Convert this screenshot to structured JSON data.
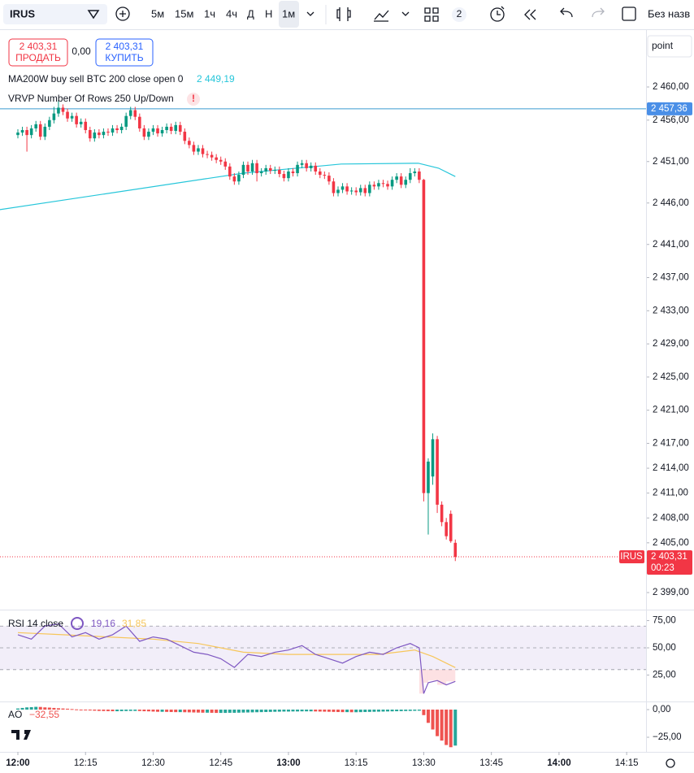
{
  "toolbar": {
    "symbol": "IRUS",
    "intervals": [
      "5м",
      "15м",
      "1ч",
      "4ч",
      "Д",
      "Н",
      "1м"
    ],
    "badge": "2",
    "layout": "Без назв"
  },
  "order": {
    "sell_price": "2 403,31",
    "sell": "ПРОДАТЬ",
    "spread": "0,00",
    "buy_price": "2 403,31",
    "buy": "КУПИТЬ"
  },
  "scale_mode": "point",
  "chart_data": {
    "type": "candlestick",
    "up_color": "#089981",
    "down_color": "#f23645",
    "x": [
      0,
      1,
      2,
      3,
      4,
      5,
      6,
      7,
      8,
      9,
      10,
      11,
      12,
      13,
      14,
      15,
      16,
      17,
      18,
      19,
      20,
      21,
      22,
      23,
      24,
      25,
      26,
      27,
      28,
      29,
      30,
      31,
      32,
      33,
      34,
      35,
      36,
      37,
      38,
      39,
      40,
      41,
      42,
      43,
      44,
      45,
      46,
      47,
      48,
      49,
      50,
      51,
      52,
      53,
      54,
      55,
      56,
      57,
      58,
      59,
      60,
      61,
      62,
      63,
      64,
      65,
      66,
      67,
      68,
      69,
      70,
      71,
      72,
      73,
      74,
      75,
      76,
      77,
      78,
      79,
      80,
      81,
      82,
      83,
      84,
      85,
      86,
      87,
      88,
      89,
      90,
      91,
      92,
      93,
      94,
      95,
      96,
      97
    ],
    "candles": [
      [
        2454.2,
        2454.9,
        2453.8,
        2454.5
      ],
      [
        2454.5,
        2455.2,
        2454.1,
        2454.8
      ],
      [
        2454.8,
        2455.2,
        2452.2,
        2454.2
      ],
      [
        2454.2,
        2455.4,
        2453.8,
        2455
      ],
      [
        2455,
        2455.9,
        2454.6,
        2455.5
      ],
      [
        2455.5,
        2455.9,
        2453.6,
        2454
      ],
      [
        2454,
        2455.6,
        2453.6,
        2455.2
      ],
      [
        2455.2,
        2456.4,
        2454.8,
        2456
      ],
      [
        2456,
        2457.6,
        2455.6,
        2456.8
      ],
      [
        2456.8,
        2458.4,
        2456.4,
        2457.5
      ],
      [
        2457.5,
        2457.9,
        2456.6,
        2457
      ],
      [
        2457,
        2457.4,
        2455.8,
        2456.2
      ],
      [
        2456.2,
        2456.9,
        2455.8,
        2456.5
      ],
      [
        2456.5,
        2456.9,
        2455.1,
        2455.5
      ],
      [
        2455.5,
        2456.2,
        2455.1,
        2455.8
      ],
      [
        2455.8,
        2456.2,
        2454.4,
        2454.8
      ],
      [
        2454.8,
        2455.2,
        2453.4,
        2453.8
      ],
      [
        2453.8,
        2454.9,
        2453.4,
        2454.5
      ],
      [
        2454.5,
        2454.9,
        2453.8,
        2454.2
      ],
      [
        2454.2,
        2455,
        2453.8,
        2454.6
      ],
      [
        2454.6,
        2455,
        2454.1,
        2454.5
      ],
      [
        2454.5,
        2455.4,
        2454.1,
        2455
      ],
      [
        2455,
        2455.4,
        2454.4,
        2454.8
      ],
      [
        2454.8,
        2455.6,
        2454.4,
        2455.2
      ],
      [
        2455.2,
        2456.9,
        2454.8,
        2456.5
      ],
      [
        2456.5,
        2457.6,
        2456.1,
        2457.2
      ],
      [
        2457.2,
        2457.6,
        2456,
        2456.4
      ],
      [
        2456.4,
        2456.8,
        2454.6,
        2455
      ],
      [
        2455,
        2455.4,
        2453.6,
        2454
      ],
      [
        2454,
        2455,
        2453.6,
        2454.6
      ],
      [
        2454.6,
        2455.4,
        2454.2,
        2455
      ],
      [
        2455,
        2455.4,
        2454,
        2454.4
      ],
      [
        2454.4,
        2455.2,
        2454,
        2454.8
      ],
      [
        2454.8,
        2455.6,
        2454.4,
        2455.2
      ],
      [
        2455.2,
        2455.6,
        2454.3,
        2454.7
      ],
      [
        2454.7,
        2455.8,
        2454.3,
        2455.4
      ],
      [
        2455.4,
        2455.8,
        2454.2,
        2454.6
      ],
      [
        2454.6,
        2455,
        2453.1,
        2453.5
      ],
      [
        2453.5,
        2453.9,
        2452.6,
        2453
      ],
      [
        2453,
        2453.4,
        2451.8,
        2452.2
      ],
      [
        2452.2,
        2453,
        2451.8,
        2452.6
      ],
      [
        2452.6,
        2453,
        2451.5,
        2451.9
      ],
      [
        2451.9,
        2452.3,
        2451.4,
        2451.8
      ],
      [
        2451.8,
        2452.2,
        2451.1,
        2451.5
      ],
      [
        2451.5,
        2451.9,
        2450.8,
        2451.2
      ],
      [
        2451.2,
        2451.6,
        2450.6,
        2451
      ],
      [
        2451,
        2451.4,
        2450,
        2450.4
      ],
      [
        2450.4,
        2450.8,
        2448.8,
        2449.2
      ],
      [
        2449.2,
        2449.6,
        2448.2,
        2448.6
      ],
      [
        2448.6,
        2449.8,
        2448.2,
        2449.4
      ],
      [
        2449.4,
        2451,
        2449,
        2450.6
      ],
      [
        2450.6,
        2451,
        2449.4,
        2449.8
      ],
      [
        2449.8,
        2451.2,
        2449.4,
        2450.8
      ],
      [
        2450.8,
        2451.2,
        2448.6,
        2449.6
      ],
      [
        2449.6,
        2450.2,
        2449.2,
        2449.8
      ],
      [
        2449.8,
        2450.6,
        2449.4,
        2450.2
      ],
      [
        2450.2,
        2450.6,
        2449.5,
        2449.9
      ],
      [
        2449.9,
        2450.4,
        2449.5,
        2450
      ],
      [
        2450,
        2450.4,
        2449.1,
        2449.5
      ],
      [
        2449.5,
        2449.9,
        2448.6,
        2449
      ],
      [
        2449,
        2450.2,
        2448.6,
        2449.8
      ],
      [
        2449.8,
        2450.2,
        2449.2,
        2449.6
      ],
      [
        2449.6,
        2451,
        2449.2,
        2450.6
      ],
      [
        2450.6,
        2451.2,
        2450.2,
        2450.8
      ],
      [
        2450.8,
        2451.2,
        2449.8,
        2450.2
      ],
      [
        2450.2,
        2450.9,
        2449.8,
        2450.5
      ],
      [
        2450.5,
        2450.9,
        2449.4,
        2449.8
      ],
      [
        2449.8,
        2450.2,
        2449,
        2449.4
      ],
      [
        2449.4,
        2449.8,
        2448.9,
        2449.3
      ],
      [
        2449.3,
        2449.7,
        2448.2,
        2448.6
      ],
      [
        2448.6,
        2449,
        2446.8,
        2447.2
      ],
      [
        2447.2,
        2448,
        2446.8,
        2447.6
      ],
      [
        2447.6,
        2448.4,
        2447.2,
        2448
      ],
      [
        2448,
        2448.4,
        2447,
        2447.4
      ],
      [
        2447.4,
        2447.9,
        2447,
        2447.5
      ],
      [
        2447.5,
        2447.9,
        2446.9,
        2447.3
      ],
      [
        2447.3,
        2448.2,
        2446.9,
        2447.8
      ],
      [
        2447.8,
        2448.2,
        2446.8,
        2447.2
      ],
      [
        2447.2,
        2448.6,
        2446.8,
        2448.2
      ],
      [
        2448.2,
        2448.6,
        2447.6,
        2448
      ],
      [
        2448,
        2448.8,
        2447.6,
        2448.4
      ],
      [
        2448.4,
        2448.8,
        2447.9,
        2448.3
      ],
      [
        2448.3,
        2448.7,
        2447.6,
        2448
      ],
      [
        2448,
        2449.2,
        2447.6,
        2448.8
      ],
      [
        2448.8,
        2449.6,
        2448.4,
        2449.2
      ],
      [
        2449.2,
        2449.6,
        2447.8,
        2448.2
      ],
      [
        2448.2,
        2449.2,
        2447.8,
        2448.8
      ],
      [
        2448.8,
        2450.2,
        2448.4,
        2449.6
      ],
      [
        2449.6,
        2450.2,
        2449.2,
        2449.8
      ],
      [
        2449.8,
        2450.2,
        2448.4,
        2448.8
      ],
      [
        2448.8,
        2448.9,
        2410,
        2411
      ],
      [
        2411,
        2415.2,
        2406,
        2414.8
      ],
      [
        2413,
        2418.2,
        2412,
        2417.5
      ],
      [
        2417.5,
        2417.9,
        2408.6,
        2409.6
      ],
      [
        2409.6,
        2410,
        2407,
        2407.5
      ],
      [
        2407.5,
        2408,
        2405.4,
        2405.8
      ],
      [
        2408.5,
        2408.9,
        2405,
        2405.2
      ],
      [
        2405,
        2405.4,
        2402.8,
        2403.31
      ]
    ],
    "xlim": [
      -3.964,
      139.3
    ],
    "xticks": [
      {
        "value": 0,
        "label": "12:00"
      },
      {
        "value": 15,
        "label": "12:15"
      },
      {
        "value": 30,
        "label": "12:30"
      },
      {
        "value": 45,
        "label": "12:45"
      },
      {
        "value": 60,
        "label": "13:00"
      },
      {
        "value": 75,
        "label": "13:15"
      },
      {
        "value": 90,
        "label": "13:30"
      },
      {
        "value": 105,
        "label": "13:45"
      },
      {
        "value": 120,
        "label": "14:00"
      },
      {
        "value": 135,
        "label": "14:15"
      }
    ],
    "ylim": [
      2396.94,
      2466.57
    ],
    "yticks": [
      {
        "value": 2460,
        "label": "2 460,00"
      },
      {
        "value": 2456,
        "label": "2 456,00"
      },
      {
        "value": 2451,
        "label": "2 451,00"
      },
      {
        "value": 2446,
        "label": "2 446,00"
      },
      {
        "value": 2441,
        "label": "2 441,00"
      },
      {
        "value": 2437,
        "label": "2 437,00"
      },
      {
        "value": 2433,
        "label": "2 433,00"
      },
      {
        "value": 2429,
        "label": "2 429,00"
      },
      {
        "value": 2425,
        "label": "2 425,00"
      },
      {
        "value": 2421,
        "label": "2 421,00"
      },
      {
        "value": 2417,
        "label": "2 417,00"
      },
      {
        "value": 2414,
        "label": "2 414,00"
      },
      {
        "value": 2411,
        "label": "2 411,00"
      },
      {
        "value": 2408,
        "label": "2 408,00"
      },
      {
        "value": 2405,
        "label": "2 405,00"
      },
      {
        "value": 2399,
        "label": "2 399,00"
      }
    ],
    "ma": {
      "name": "MA200W buy sell BTC 200 close open 0",
      "color": "#26c6da",
      "x": [
        -4,
        50,
        71.7,
        88.8,
        93.3,
        97
      ],
      "values": [
        2445.2,
        2449.6,
        2450.7,
        2450.8,
        2450.2,
        2449.19
      ],
      "value_label": "2 449,19"
    },
    "vrvp": {
      "name": "VRVP Number Of Rows 250 Up/Down",
      "alert": "!"
    },
    "price_line": {
      "value": 2457.36,
      "label": "2 457,36",
      "color": "#3a9bd1"
    },
    "last_price": {
      "value": 2403.31,
      "label": "2 403,31",
      "symbol": "IRUS",
      "timer": "00:23",
      "color": "#f23645"
    },
    "rsi": {
      "name": "RSI 14 close",
      "color": "#7e57c2",
      "x": [
        0,
        3,
        6,
        9,
        12,
        15,
        18,
        21,
        24,
        27,
        30,
        33,
        36,
        39,
        42,
        45,
        48,
        51,
        54,
        57,
        60,
        63,
        66,
        69,
        72,
        75,
        78,
        81,
        84,
        87,
        89,
        90,
        91,
        93,
        95,
        97
      ],
      "values": [
        62,
        58,
        70,
        72,
        60,
        64,
        58,
        62,
        70,
        56,
        60,
        58,
        52,
        46,
        44,
        40,
        32,
        44,
        42,
        46,
        48,
        52,
        44,
        40,
        36,
        42,
        46,
        44,
        50,
        54,
        50,
        8,
        18,
        20,
        16,
        19.16
      ],
      "value_label": "19,16",
      "ma": {
        "color": "#f7c65a",
        "x": [
          0,
          10,
          20,
          30,
          40,
          50,
          60,
          70,
          80,
          88,
          92,
          97
        ],
        "values": [
          64,
          62,
          60,
          58,
          54,
          46,
          44,
          44,
          44,
          48,
          42,
          31.85
        ],
        "value_label": "31,85"
      },
      "levels": [
        30,
        50,
        70
      ],
      "ylim": [
        1.5,
        83.6
      ],
      "yticks": [
        {
          "value": 75,
          "label": "75,00"
        },
        {
          "value": 50,
          "label": "50,00"
        },
        {
          "value": 25,
          "label": "25,00"
        }
      ]
    },
    "ao": {
      "name": "AO",
      "up_color": "#26a69a",
      "down_color": "#ef5350",
      "value_label": "−32,55",
      "values": [
        1,
        1.5,
        2,
        2.2,
        2.5,
        2.4,
        2,
        1.8,
        1.5,
        1.2,
        1,
        0.8,
        0.5,
        0.2,
        -0.2,
        -0.5,
        -0.8,
        -1,
        -1.2,
        -1.3,
        -1.4,
        -1.5,
        -1.5,
        -1.4,
        -1.3,
        -1.2,
        -1.2,
        -1.3,
        -1.5,
        -1.6,
        -1.8,
        -2,
        -2,
        -2.1,
        -2.2,
        -2.3,
        -2.3,
        -2.4,
        -2.5,
        -2.6,
        -2.7,
        -2.8,
        -2.8,
        -2.9,
        -3,
        -3,
        -3,
        -2.9,
        -2.9,
        -2.8,
        -2.7,
        -2.6,
        -2.5,
        -2.4,
        -2.3,
        -2.2,
        -2.1,
        -2,
        -1.9,
        -1.8,
        -1.8,
        -1.7,
        -1.7,
        -1.6,
        -1.6,
        -1.6,
        -1.7,
        -1.8,
        -1.9,
        -2,
        -2.1,
        -2.2,
        -2.3,
        -2.3,
        -2.4,
        -2.4,
        -2.3,
        -2.2,
        -2.1,
        -2,
        -1.9,
        -1.8,
        -1.7,
        -1.6,
        -1.5,
        -1.4,
        -1.3,
        -1.2,
        -1.1,
        -1,
        -5,
        -12,
        -18,
        -24,
        -28,
        -32,
        -34,
        -32.55
      ],
      "ylim": [
        -38.2,
        6.6
      ],
      "yticks": [
        {
          "value": 0,
          "label": "0,00"
        },
        {
          "value": -25,
          "label": "−25,00"
        }
      ]
    }
  }
}
